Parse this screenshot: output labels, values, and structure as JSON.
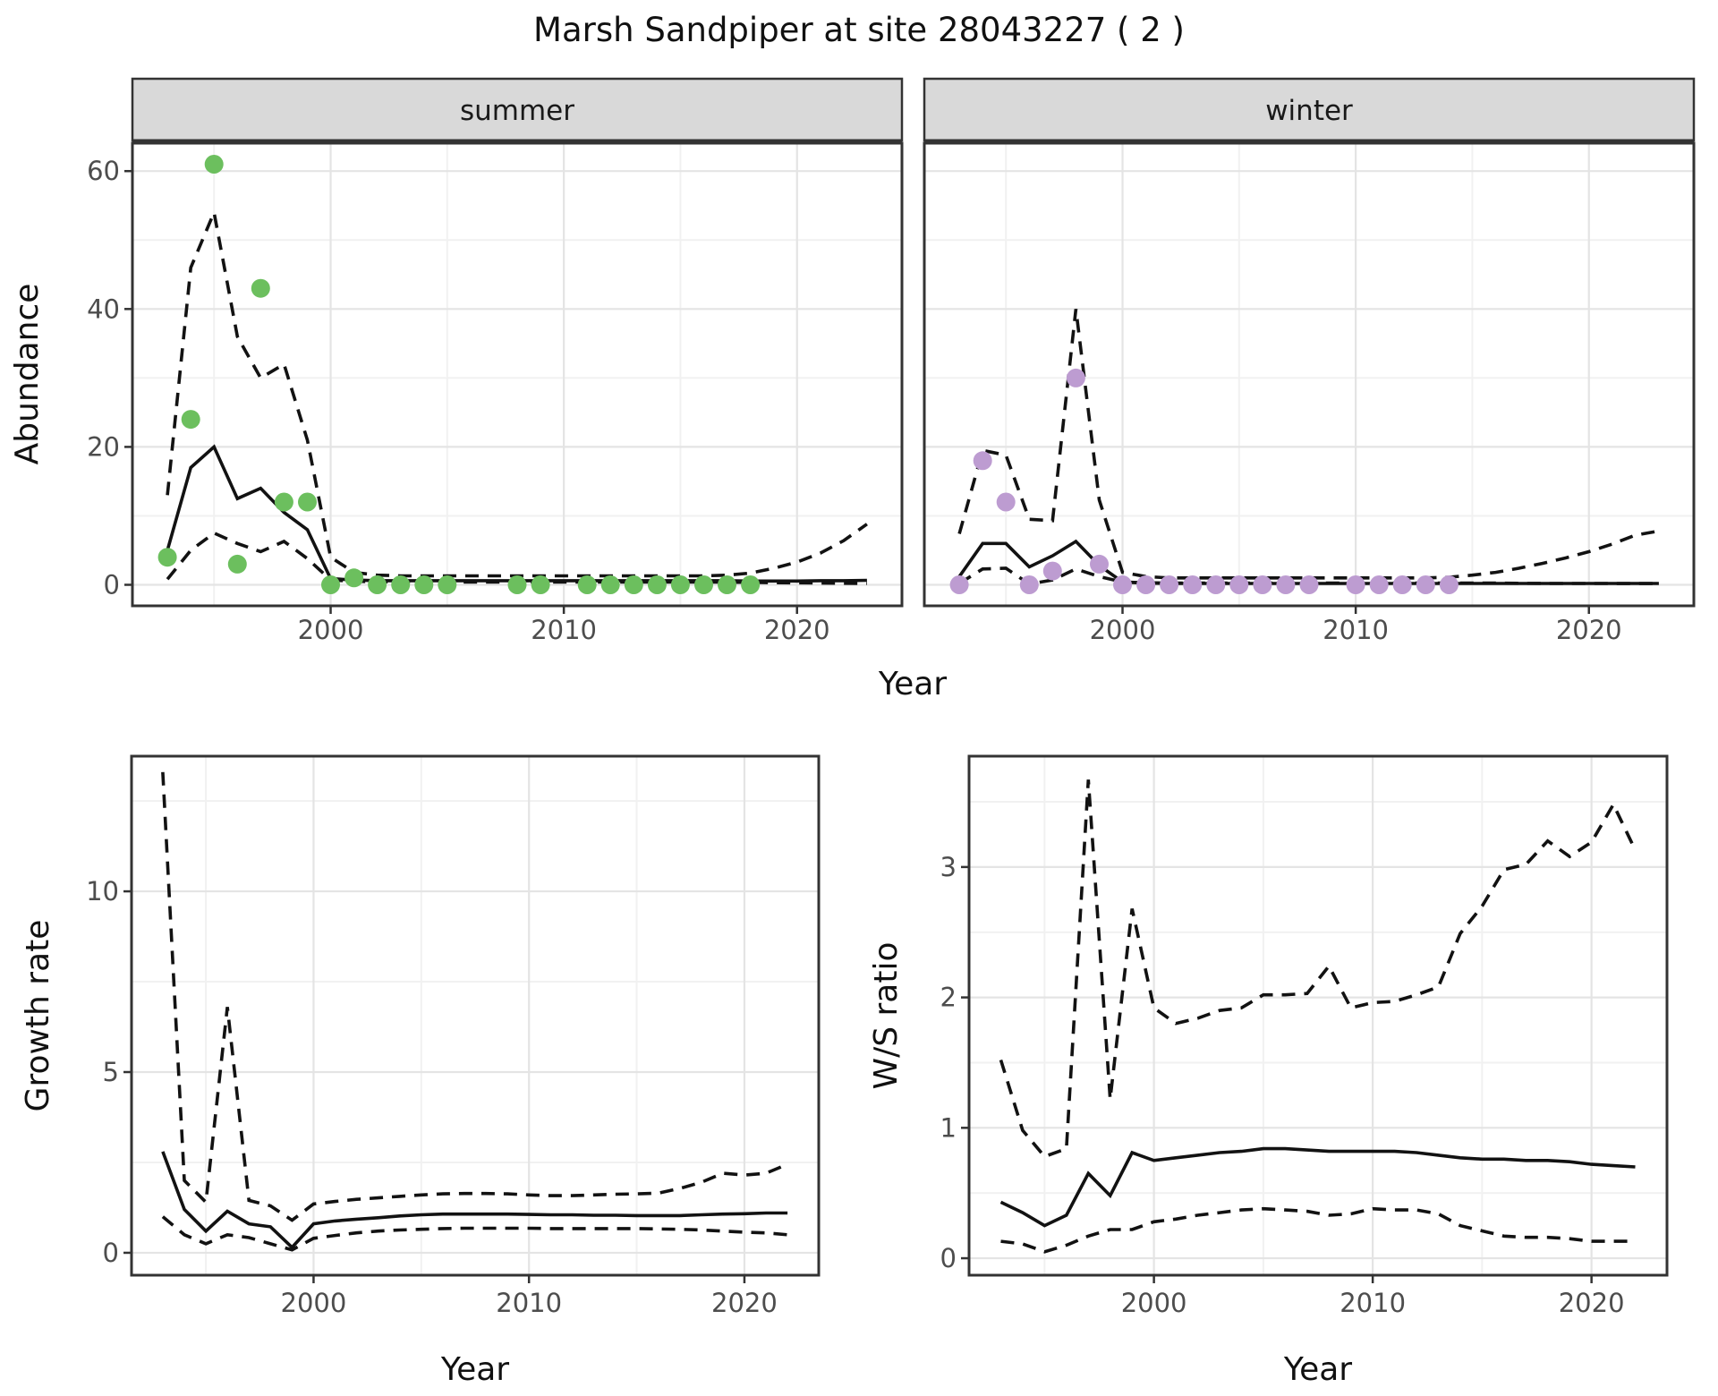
{
  "title": "Marsh Sandpiper at site 28043227 ( 2 )",
  "axes": {
    "abundance": "Abundance",
    "year": "Year",
    "growth_rate": "Growth rate",
    "ws_ratio": "W/S ratio"
  },
  "facets": [
    {
      "label": "summer"
    },
    {
      "label": "winter"
    }
  ],
  "colors": {
    "summer_points": "#6cbf5e",
    "winter_points": "#bd9cd1",
    "line": "#121212",
    "strip_fill": "#d9d9d9",
    "panel_border": "#333333",
    "grid_major": "#e4e4e4",
    "grid_minor": "#f1f1f1",
    "tick_text": "#4d4d4d",
    "background": "#ffffff"
  },
  "chart_data": [
    {
      "id": "abundance-summer",
      "type": "line",
      "facet_label": "summer",
      "xlabel": "Year",
      "ylabel": "Abundance",
      "xlim": [
        1991.5,
        2024.5
      ],
      "ylim": [
        -3.05,
        64.05
      ],
      "xticks": [
        2000,
        2010,
        2020
      ],
      "xticks_minor": [
        1995,
        2005,
        2015
      ],
      "yticks": [
        0,
        20,
        40,
        60
      ],
      "yticks_minor": [
        10,
        30,
        50
      ],
      "grid": true,
      "legend": "none",
      "series": [
        {
          "name": "modelled-mean",
          "style": "solid",
          "years": [
            1993,
            1994,
            1995,
            1996,
            1997,
            1998,
            1999,
            2000,
            2001,
            2002,
            2003,
            2004,
            2005,
            2006,
            2007,
            2008,
            2009,
            2010,
            2011,
            2012,
            2013,
            2014,
            2015,
            2016,
            2017,
            2018,
            2019,
            2020,
            2021,
            2022,
            2023
          ],
          "values": [
            5,
            17,
            20,
            12.5,
            14,
            10.5,
            8,
            0.9,
            0.7,
            0.6,
            0.6,
            0.6,
            0.6,
            0.6,
            0.6,
            0.6,
            0.6,
            0.6,
            0.6,
            0.6,
            0.6,
            0.6,
            0.6,
            0.6,
            0.6,
            0.55,
            0.55,
            0.55,
            0.6,
            0.6,
            0.65
          ]
        },
        {
          "name": "ci-upper",
          "style": "dashed",
          "years": [
            1993,
            1994,
            1995,
            1996,
            1997,
            1998,
            1999,
            2000,
            2001,
            2002,
            2003,
            2004,
            2005,
            2006,
            2007,
            2008,
            2009,
            2010,
            2011,
            2012,
            2013,
            2014,
            2015,
            2016,
            2017,
            2018,
            2019,
            2020,
            2021,
            2022,
            2023
          ],
          "values": [
            13,
            46,
            54,
            36,
            30,
            32,
            21,
            4,
            1.8,
            1.4,
            1.3,
            1.3,
            1.3,
            1.3,
            1.3,
            1.3,
            1.3,
            1.3,
            1.3,
            1.3,
            1.3,
            1.3,
            1.3,
            1.3,
            1.4,
            1.7,
            2.4,
            3.3,
            4.6,
            6.4,
            8.8
          ]
        },
        {
          "name": "ci-lower",
          "style": "dashed",
          "years": [
            1993,
            1994,
            1995,
            1996,
            1997,
            1998,
            1999,
            2000,
            2001,
            2002,
            2003,
            2004,
            2005,
            2006,
            2007,
            2008,
            2009,
            2010,
            2011,
            2012,
            2013,
            2014,
            2015,
            2016,
            2017,
            2018,
            2019,
            2020,
            2021,
            2022,
            2023
          ],
          "values": [
            0.8,
            5,
            7.5,
            6,
            4.8,
            6.3,
            3.8,
            0.7,
            0.5,
            0.45,
            0.4,
            0.4,
            0.4,
            0.4,
            0.4,
            0.4,
            0.4,
            0.4,
            0.4,
            0.4,
            0.4,
            0.4,
            0.4,
            0.4,
            0.38,
            0.35,
            0.3,
            0.28,
            0.25,
            0.22,
            0.2
          ]
        },
        {
          "name": "observed-counts",
          "style": "points",
          "color": "#6cbf5e",
          "years": [
            1993,
            1994,
            1995,
            1996,
            1997,
            1998,
            1999,
            2000,
            2001,
            2002,
            2003,
            2004,
            2005,
            2008,
            2009,
            2011,
            2012,
            2013,
            2014,
            2015,
            2016,
            2017,
            2018
          ],
          "values": [
            4,
            24,
            61,
            3,
            43,
            12,
            12,
            0,
            1,
            0,
            0,
            0,
            0,
            0,
            0,
            0,
            0,
            0,
            0,
            0,
            0,
            0,
            0
          ]
        }
      ]
    },
    {
      "id": "abundance-winter",
      "type": "line",
      "facet_label": "winter",
      "xlabel": "Year",
      "ylabel": "Abundance",
      "xlim": [
        1991.5,
        2024.5
      ],
      "ylim": [
        -3.05,
        64.05
      ],
      "xticks": [
        2000,
        2010,
        2020
      ],
      "xticks_minor": [
        1995,
        2005,
        2015
      ],
      "yticks": [
        0,
        20,
        40,
        60
      ],
      "yticks_minor": [
        10,
        30,
        50
      ],
      "grid": true,
      "legend": "none",
      "series": [
        {
          "name": "modelled-mean",
          "style": "solid",
          "years": [
            1993,
            1994,
            1995,
            1996,
            1997,
            1998,
            1999,
            2000,
            2001,
            2002,
            2003,
            2004,
            2005,
            2006,
            2007,
            2008,
            2009,
            2010,
            2011,
            2012,
            2013,
            2014,
            2015,
            2016,
            2017,
            2018,
            2019,
            2020,
            2021,
            2022,
            2023
          ],
          "values": [
            1.2,
            6,
            6,
            2.6,
            4.2,
            6.3,
            2.8,
            0.4,
            0.25,
            0.2,
            0.2,
            0.2,
            0.2,
            0.2,
            0.2,
            0.2,
            0.2,
            0.2,
            0.2,
            0.2,
            0.2,
            0.2,
            0.2,
            0.2,
            0.2,
            0.2,
            0.2,
            0.2,
            0.2,
            0.2,
            0.2
          ]
        },
        {
          "name": "ci-upper",
          "style": "dashed",
          "years": [
            1993,
            1994,
            1995,
            1996,
            1997,
            1998,
            1999,
            2000,
            2001,
            2002,
            2003,
            2004,
            2005,
            2006,
            2007,
            2008,
            2009,
            2010,
            2011,
            2012,
            2013,
            2014,
            2015,
            2016,
            2017,
            2018,
            2019,
            2020,
            2021,
            2022,
            2023
          ],
          "values": [
            7.4,
            19.5,
            18.8,
            9.5,
            9.3,
            40,
            12.3,
            1.8,
            1.2,
            1,
            1,
            1,
            1,
            1,
            1,
            1,
            1,
            1,
            1,
            1,
            1,
            1.1,
            1.4,
            1.8,
            2.4,
            3.1,
            3.9,
            4.8,
            5.9,
            7.2,
            7.8
          ]
        },
        {
          "name": "ci-lower",
          "style": "dashed",
          "years": [
            1993,
            1994,
            1995,
            1996,
            1997,
            1998,
            1999,
            2000,
            2001,
            2002,
            2003,
            2004,
            2005,
            2006,
            2007,
            2008,
            2009,
            2010,
            2011,
            2012,
            2013,
            2014,
            2015,
            2016,
            2017,
            2018,
            2019,
            2020,
            2021,
            2022,
            2023
          ],
          "values": [
            0.2,
            2.3,
            2.4,
            0.1,
            0.7,
            2.3,
            1.2,
            0.4,
            0.3,
            0.25,
            0.25,
            0.25,
            0.25,
            0.25,
            0.25,
            0.25,
            0.25,
            0.25,
            0.25,
            0.25,
            0.25,
            0.25,
            0.25,
            0.25,
            0.22,
            0.2,
            0.2,
            0.2,
            0.2,
            0.18,
            0.18
          ]
        },
        {
          "name": "observed-counts",
          "style": "points",
          "color": "#bd9cd1",
          "years": [
            1993,
            1994,
            1995,
            1996,
            1997,
            1998,
            1999,
            2000,
            2001,
            2002,
            2003,
            2004,
            2005,
            2006,
            2007,
            2008,
            2010,
            2011,
            2012,
            2013,
            2014
          ],
          "values": [
            0,
            18,
            12,
            0,
            2,
            30,
            3,
            0,
            0,
            0,
            0,
            0,
            0,
            0,
            0,
            0,
            0,
            0,
            0,
            0,
            0
          ]
        }
      ]
    },
    {
      "id": "growth-rate",
      "type": "line",
      "facet_label": "",
      "xlabel": "Year",
      "ylabel": "Growth rate",
      "xlim": [
        1991.55,
        2023.45
      ],
      "ylim": [
        -0.62,
        13.74
      ],
      "xticks": [
        2000,
        2010,
        2020
      ],
      "xticks_minor": [
        1995,
        2005,
        2015
      ],
      "yticks": [
        0,
        5,
        10
      ],
      "yticks_minor": [
        2.5,
        7.5,
        12.5
      ],
      "grid": true,
      "legend": "none",
      "series": [
        {
          "name": "modelled-mean",
          "style": "solid",
          "years": [
            1993,
            1994,
            1995,
            1996,
            1997,
            1998,
            1999,
            2000,
            2001,
            2002,
            2003,
            2004,
            2005,
            2006,
            2007,
            2008,
            2009,
            2010,
            2011,
            2012,
            2013,
            2014,
            2015,
            2016,
            2017,
            2018,
            2019,
            2020,
            2021,
            2022
          ],
          "values": [
            2.8,
            1.2,
            0.6,
            1.15,
            0.8,
            0.72,
            0.15,
            0.8,
            0.88,
            0.93,
            0.97,
            1.02,
            1.05,
            1.07,
            1.07,
            1.07,
            1.07,
            1.06,
            1.05,
            1.05,
            1.04,
            1.04,
            1.03,
            1.03,
            1.03,
            1.05,
            1.07,
            1.08,
            1.1,
            1.1
          ]
        },
        {
          "name": "ci-upper",
          "style": "dashed",
          "years": [
            1993,
            1994,
            1995,
            1996,
            1997,
            1998,
            1999,
            2000,
            2001,
            2002,
            2003,
            2004,
            2005,
            2006,
            2007,
            2008,
            2009,
            2010,
            2011,
            2012,
            2013,
            2014,
            2015,
            2016,
            2017,
            2018,
            2019,
            2020,
            2021,
            2022
          ],
          "values": [
            13.3,
            2,
            1.4,
            6.8,
            1.45,
            1.3,
            0.9,
            1.35,
            1.42,
            1.48,
            1.52,
            1.56,
            1.6,
            1.63,
            1.64,
            1.64,
            1.63,
            1.6,
            1.58,
            1.58,
            1.6,
            1.62,
            1.63,
            1.65,
            1.78,
            1.95,
            2.2,
            2.15,
            2.2,
            2.45
          ]
        },
        {
          "name": "ci-lower",
          "style": "dashed",
          "years": [
            1993,
            1994,
            1995,
            1996,
            1997,
            1998,
            1999,
            2000,
            2001,
            2002,
            2003,
            2004,
            2005,
            2006,
            2007,
            2008,
            2009,
            2010,
            2011,
            2012,
            2013,
            2014,
            2015,
            2016,
            2017,
            2018,
            2019,
            2020,
            2021,
            2022
          ],
          "values": [
            1,
            0.5,
            0.25,
            0.5,
            0.42,
            0.25,
            0.08,
            0.4,
            0.48,
            0.55,
            0.6,
            0.63,
            0.65,
            0.67,
            0.68,
            0.68,
            0.68,
            0.68,
            0.67,
            0.67,
            0.67,
            0.67,
            0.67,
            0.66,
            0.65,
            0.63,
            0.6,
            0.57,
            0.55,
            0.5
          ]
        }
      ]
    },
    {
      "id": "ws-ratio",
      "type": "line",
      "facet_label": "",
      "xlabel": "Year",
      "ylabel": "W/S ratio",
      "xlim": [
        1991.55,
        2023.45
      ],
      "ylim": [
        -0.13,
        3.85
      ],
      "xticks": [
        2000,
        2010,
        2020
      ],
      "xticks_minor": [
        1995,
        2005,
        2015
      ],
      "yticks": [
        0,
        1,
        2,
        3
      ],
      "yticks_minor": [
        0.5,
        1.5,
        2.5,
        3.5
      ],
      "grid": true,
      "legend": "none",
      "series": [
        {
          "name": "modelled-mean",
          "style": "solid",
          "years": [
            1993,
            1994,
            1995,
            1996,
            1997,
            1998,
            1999,
            2000,
            2001,
            2002,
            2003,
            2004,
            2005,
            2006,
            2007,
            2008,
            2009,
            2010,
            2011,
            2012,
            2013,
            2014,
            2015,
            2016,
            2017,
            2018,
            2019,
            2020,
            2021,
            2022
          ],
          "values": [
            0.43,
            0.35,
            0.25,
            0.33,
            0.65,
            0.48,
            0.81,
            0.75,
            0.77,
            0.79,
            0.81,
            0.82,
            0.84,
            0.84,
            0.83,
            0.82,
            0.82,
            0.82,
            0.82,
            0.81,
            0.79,
            0.77,
            0.76,
            0.76,
            0.75,
            0.75,
            0.74,
            0.72,
            0.71,
            0.7
          ]
        },
        {
          "name": "ci-upper",
          "style": "dashed",
          "years": [
            1993,
            1994,
            1995,
            1996,
            1997,
            1998,
            1999,
            2000,
            2001,
            2002,
            2003,
            2004,
            2005,
            2006,
            2007,
            2008,
            2009,
            2010,
            2011,
            2012,
            2013,
            2014,
            2015,
            2016,
            2017,
            2018,
            2019,
            2020,
            2021,
            2022
          ],
          "values": [
            1.52,
            0.98,
            0.78,
            0.84,
            3.67,
            1.22,
            2.68,
            1.92,
            1.8,
            1.84,
            1.9,
            1.92,
            2.02,
            2.02,
            2.03,
            2.24,
            1.92,
            1.96,
            1.97,
            2.02,
            2.08,
            2.49,
            2.7,
            2.98,
            3.02,
            3.2,
            3.08,
            3.19,
            3.48,
            3.13
          ]
        },
        {
          "name": "ci-lower",
          "style": "dashed",
          "years": [
            1993,
            1994,
            1995,
            1996,
            1997,
            1998,
            1999,
            2000,
            2001,
            2002,
            2003,
            2004,
            2005,
            2006,
            2007,
            2008,
            2009,
            2010,
            2011,
            2012,
            2013,
            2014,
            2015,
            2016,
            2017,
            2018,
            2019,
            2020,
            2021,
            2022
          ],
          "values": [
            0.13,
            0.11,
            0.05,
            0.1,
            0.17,
            0.22,
            0.22,
            0.28,
            0.3,
            0.33,
            0.35,
            0.37,
            0.38,
            0.37,
            0.36,
            0.33,
            0.34,
            0.38,
            0.37,
            0.37,
            0.34,
            0.25,
            0.21,
            0.17,
            0.16,
            0.16,
            0.15,
            0.13,
            0.13,
            0.13
          ]
        }
      ]
    }
  ]
}
